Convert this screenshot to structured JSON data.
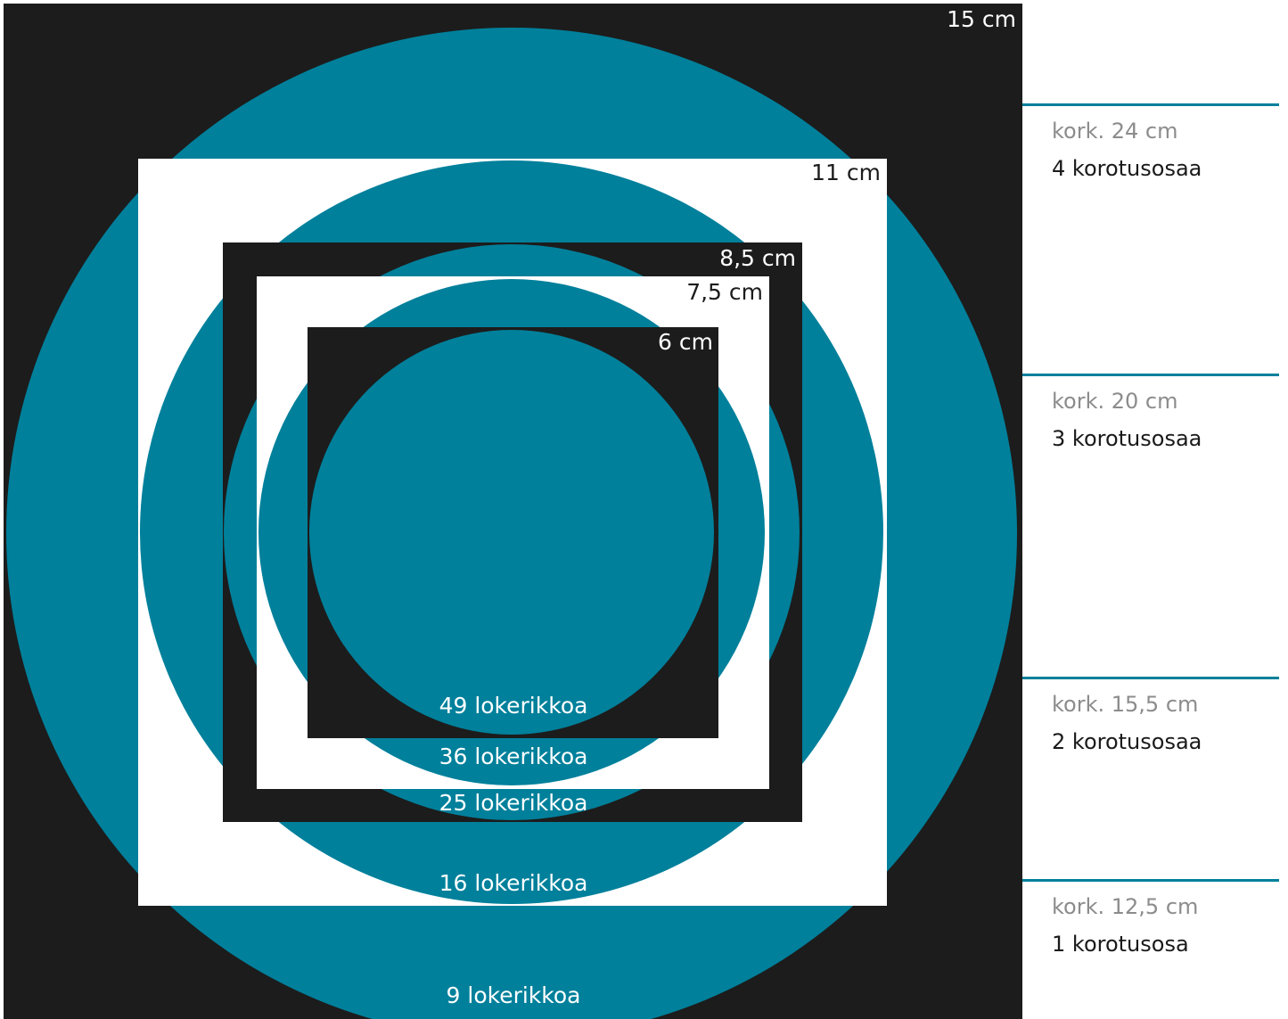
{
  "colors": {
    "teal": "#00809b",
    "dark": "#1c1c1c",
    "white": "#ffffff",
    "label_gray": "#8c8c8c"
  },
  "squares": [
    {
      "label": "15 cm",
      "fill": "dark"
    },
    {
      "label": "11 cm",
      "fill": "white"
    },
    {
      "label": "8,5 cm",
      "fill": "dark"
    },
    {
      "label": "7,5 cm",
      "fill": "white"
    },
    {
      "label": "6 cm",
      "fill": "dark"
    }
  ],
  "circles": [
    {
      "label": "9 lokerikkoa"
    },
    {
      "label": "16 lokerikkoa"
    },
    {
      "label": "25 lokerikkoa"
    },
    {
      "label": "36 lokerikkoa"
    },
    {
      "label": "49 lokerikkoa"
    }
  ],
  "tiers": [
    {
      "height": "kork. 24 cm",
      "parts": "4 korotusosaa"
    },
    {
      "height": "kork. 20 cm",
      "parts": "3 korotusosaa"
    },
    {
      "height": "kork. 15,5 cm",
      "parts": "2 korotusosaa"
    },
    {
      "height": "kork. 12,5 cm",
      "parts": "1 korotusosa"
    }
  ]
}
